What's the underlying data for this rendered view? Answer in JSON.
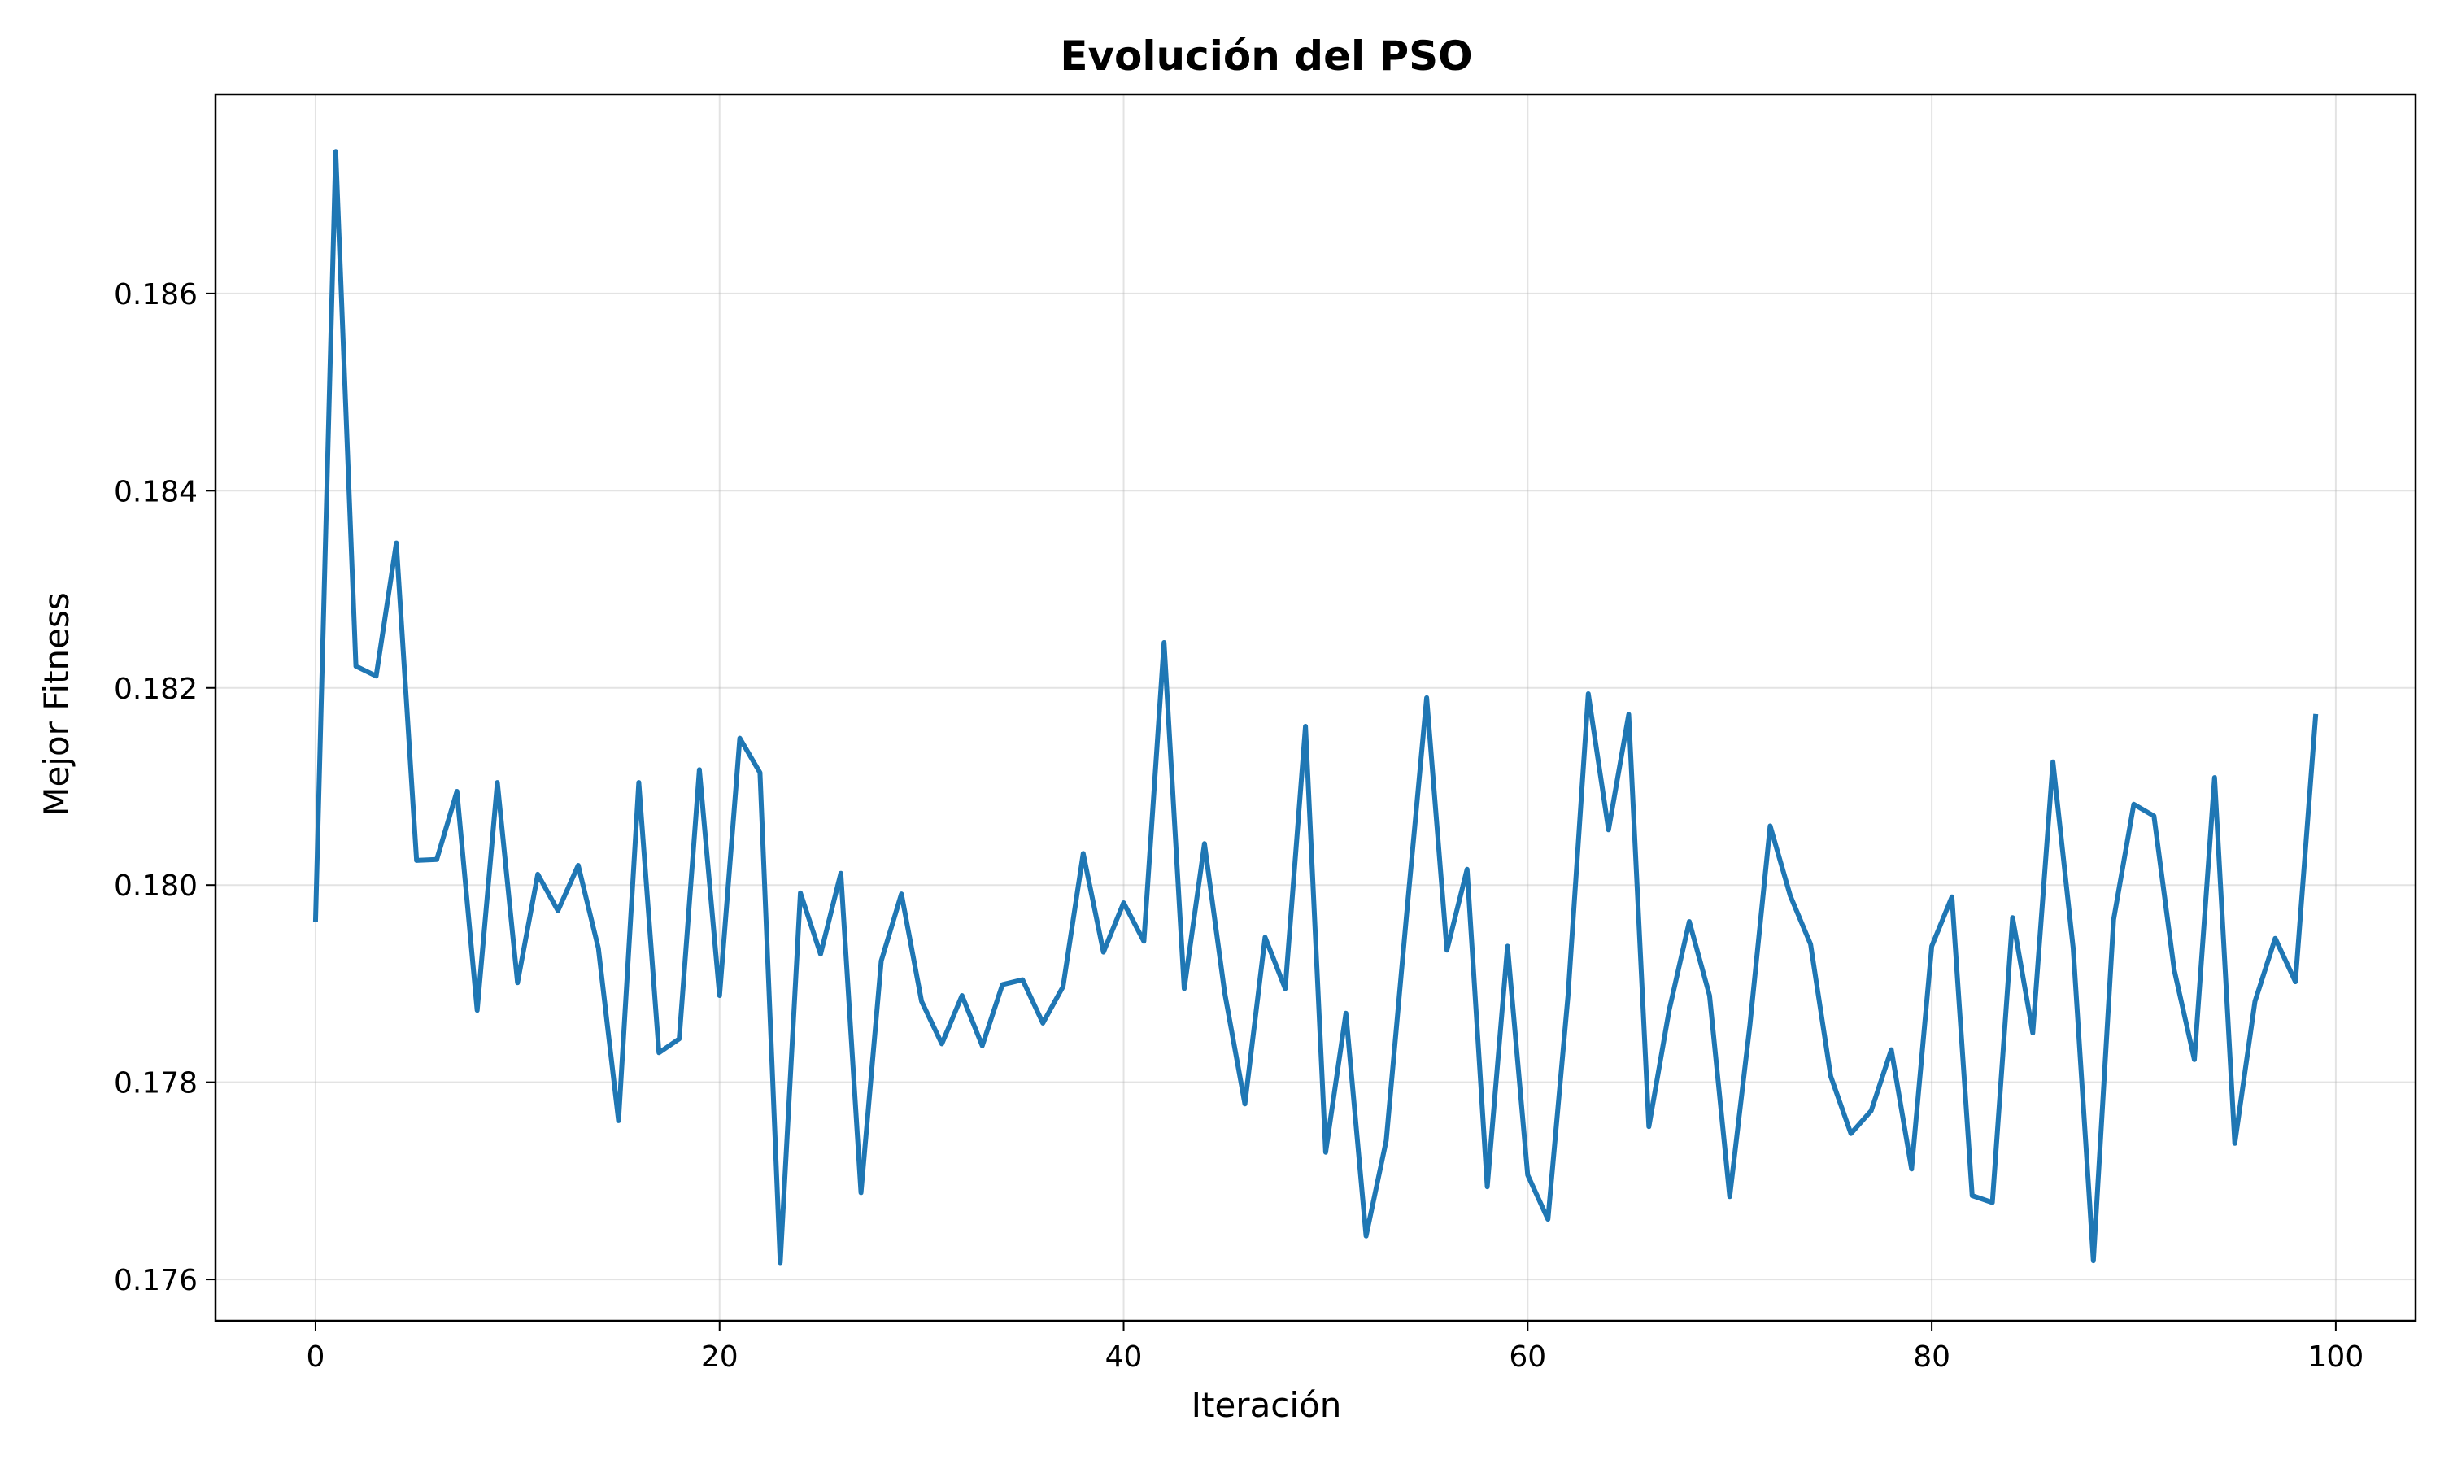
{
  "chart_data": {
    "type": "line",
    "title": "Evolución del PSO",
    "xlabel": "Iteración",
    "ylabel": "Mejor Fitness",
    "xlim": [
      -4.95,
      103.95
    ],
    "ylim": [
      0.17558,
      0.18802
    ],
    "xticks": [
      0,
      20,
      40,
      60,
      80,
      100
    ],
    "xtick_labels": [
      "0",
      "20",
      "40",
      "60",
      "80",
      "100"
    ],
    "yticks": [
      0.176,
      0.178,
      0.18,
      0.182,
      0.184,
      0.186
    ],
    "ytick_labels": [
      "0.176",
      "0.178",
      "0.180",
      "0.182",
      "0.184",
      "0.186"
    ],
    "grid": true,
    "legend": "none",
    "series": [
      {
        "color": "#1f77b4",
        "x": [
          0,
          1,
          2,
          3,
          4,
          5,
          6,
          7,
          8,
          9,
          10,
          11,
          12,
          13,
          14,
          15,
          16,
          17,
          18,
          19,
          20,
          21,
          22,
          23,
          24,
          25,
          26,
          27,
          28,
          29,
          30,
          31,
          32,
          33,
          34,
          35,
          36,
          37,
          38,
          39,
          40,
          41,
          42,
          43,
          44,
          45,
          46,
          47,
          48,
          49,
          50,
          51,
          52,
          53,
          54,
          55,
          56,
          57,
          58,
          59,
          60,
          61,
          62,
          63,
          64,
          65,
          66,
          67,
          68,
          69,
          70,
          71,
          72,
          73,
          74,
          75,
          76,
          77,
          78,
          79,
          80,
          81,
          82,
          83,
          84,
          85,
          86,
          87,
          88,
          89,
          90,
          91,
          92,
          93,
          94,
          95,
          96,
          97,
          98,
          99
        ],
        "values": [
          0.17965,
          0.18744,
          0.18222,
          0.18212,
          0.18347,
          0.18025,
          0.18026,
          0.18095,
          0.17873,
          0.18104,
          0.17901,
          0.18011,
          0.17974,
          0.1802,
          0.17936,
          0.17761,
          0.18104,
          0.1783,
          0.17844,
          0.18117,
          0.17888,
          0.18149,
          0.18114,
          0.17617,
          0.17992,
          0.1793,
          0.18012,
          0.17688,
          0.17923,
          0.17991,
          0.17882,
          0.17839,
          0.17888,
          0.17837,
          0.17899,
          0.17904,
          0.1786,
          0.17897,
          0.18032,
          0.17932,
          0.17982,
          0.17943,
          0.18246,
          0.17895,
          0.18042,
          0.17891,
          0.17778,
          0.17947,
          0.17895,
          0.18161,
          0.17729,
          0.1787,
          0.17644,
          0.17741,
          0.17969,
          0.1819,
          0.17934,
          0.18016,
          0.17694,
          0.17938,
          0.17706,
          0.17661,
          0.17889,
          0.18194,
          0.18056,
          0.18173,
          0.17755,
          0.17873,
          0.17963,
          0.17888,
          0.17684,
          0.17858,
          0.1806,
          0.17989,
          0.1794,
          0.17806,
          0.17748,
          0.17771,
          0.17833,
          0.17712,
          0.17938,
          0.17988,
          0.17685,
          0.17678,
          0.17967,
          0.1785,
          0.18125,
          0.17936,
          0.17619,
          0.17965,
          0.18082,
          0.1807,
          0.17914,
          0.17823,
          0.18109,
          0.17738,
          0.17882,
          0.17946,
          0.17902,
          0.18171
        ]
      }
    ]
  }
}
